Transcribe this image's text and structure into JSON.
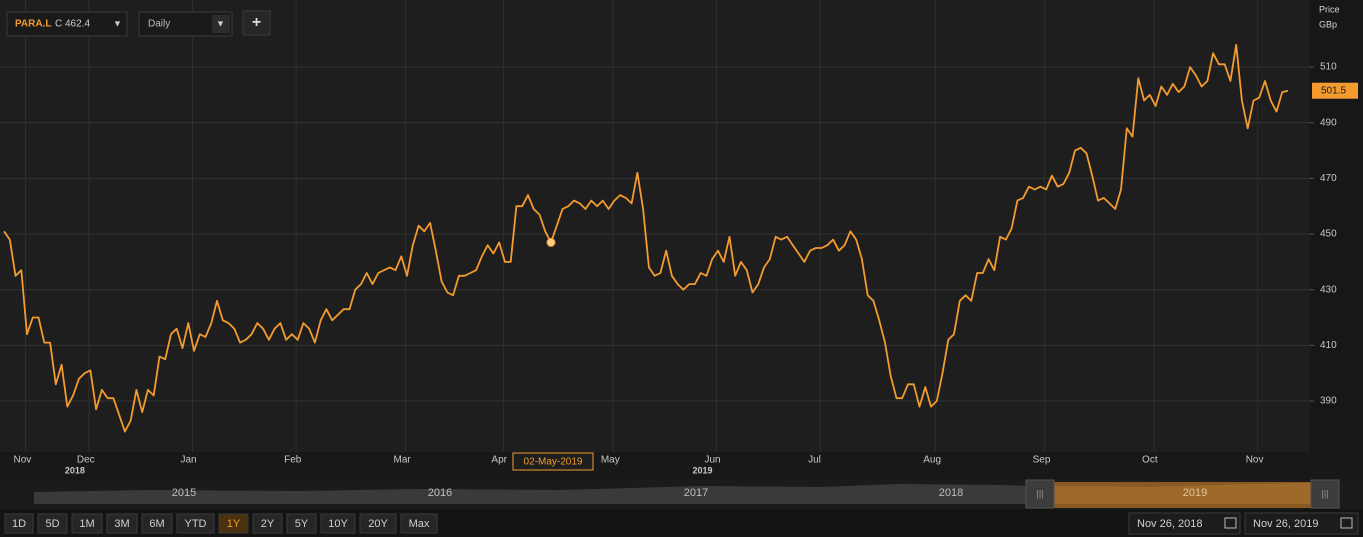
{
  "toolbar": {
    "symbol": "PARA.L",
    "quote": "C 462.4",
    "interval": "Daily",
    "add": "+"
  },
  "chart_data": {
    "type": "line",
    "axis_title": "Price",
    "axis_unit": "GBp",
    "categories": [
      null,
      null,
      "Nov",
      null,
      null,
      null,
      null,
      null,
      null,
      null,
      null,
      null,
      null,
      "Dec",
      null,
      null,
      null,
      null,
      null,
      null,
      null,
      null,
      null,
      null,
      null,
      null,
      null,
      null,
      null,
      null,
      null,
      "Jan",
      null,
      null,
      null,
      null,
      null,
      null,
      null,
      null,
      null,
      null,
      null,
      null,
      null,
      null,
      null,
      null,
      null,
      "Feb",
      null,
      null,
      null,
      null,
      null,
      null,
      null,
      null,
      null,
      null,
      null,
      null,
      null,
      null,
      null,
      null,
      null,
      null,
      "Mar",
      null,
      null,
      null,
      null,
      null,
      null,
      null,
      null,
      null,
      null,
      null,
      null,
      null,
      null,
      null,
      null,
      "Apr",
      null,
      null,
      null,
      null,
      null,
      null,
      null,
      null,
      null,
      null,
      null,
      null,
      null,
      null,
      null,
      null,
      null,
      null,
      "May",
      null,
      null,
      null,
      null,
      null,
      null,
      null,
      null,
      null,
      null,
      null,
      null,
      null,
      null,
      null,
      null,
      null,
      "Jun",
      null,
      null,
      null,
      null,
      null,
      null,
      null,
      null,
      null,
      null,
      null,
      null,
      null,
      null,
      null,
      null,
      null,
      "Jul",
      null,
      null,
      null,
      null,
      null,
      null,
      null,
      null,
      null,
      null,
      null,
      null,
      null,
      null,
      null,
      null,
      null,
      null,
      null,
      "Aug",
      null,
      null,
      null,
      null,
      null,
      null,
      null,
      null,
      null,
      null,
      null,
      null,
      null,
      null,
      null,
      null,
      null,
      null,
      "Sep",
      null,
      null,
      null,
      null,
      null,
      null,
      null,
      null,
      null,
      null,
      null,
      null,
      null,
      null,
      null,
      null,
      null,
      null,
      "Oct",
      null,
      null,
      null,
      null,
      null,
      null,
      null,
      null,
      null,
      null,
      null,
      null,
      null,
      null,
      null,
      null,
      null,
      "Nov",
      null,
      null,
      null,
      null,
      null,
      null,
      null
    ],
    "year_labels": [
      "2018",
      "2019"
    ],
    "series": [
      {
        "name": "PARA.L",
        "color": "#f39b2f",
        "values": [
          451,
          448,
          435,
          437,
          414,
          420,
          420,
          411,
          411,
          396,
          403,
          388,
          392,
          398,
          400,
          401,
          387,
          394,
          391,
          391,
          385,
          379,
          383,
          394,
          386,
          394,
          392,
          406,
          405,
          414,
          416,
          409,
          418,
          408,
          414,
          413,
          418,
          426,
          419,
          418,
          416,
          411,
          412,
          414,
          418,
          416,
          412,
          416,
          418,
          412,
          414,
          412,
          418,
          416,
          411,
          419,
          423,
          419,
          421,
          423,
          423,
          430,
          432,
          436,
          432,
          436,
          437,
          438,
          437,
          442,
          435,
          446,
          453,
          451,
          454,
          444,
          433,
          429,
          428,
          435,
          435,
          436,
          437,
          442,
          446,
          443,
          447,
          440,
          440,
          460,
          460,
          464,
          459,
          457,
          451,
          447,
          453,
          459,
          460,
          462,
          461,
          459,
          462,
          460,
          462,
          459,
          462,
          464,
          463,
          461,
          472,
          459,
          438,
          435,
          436,
          444,
          435,
          432,
          430,
          432,
          432,
          436,
          435,
          441,
          444,
          440,
          449,
          435,
          440,
          437,
          429,
          432,
          438,
          441,
          449,
          448,
          449,
          446,
          443,
          440,
          444,
          445,
          445,
          446,
          448,
          444,
          446,
          451,
          448,
          441,
          428,
          426,
          419,
          411,
          399,
          391,
          391,
          396,
          396,
          388,
          395,
          388,
          390,
          400,
          412,
          414,
          426,
          428,
          426,
          436,
          436,
          441,
          437,
          449,
          448,
          452,
          462,
          463,
          467,
          466,
          467,
          466,
          471,
          467,
          468,
          472,
          480,
          481,
          479,
          471,
          462,
          463,
          461,
          459,
          466,
          488,
          485,
          506,
          498,
          500,
          496,
          503,
          500,
          504,
          501,
          503,
          510,
          507,
          503,
          505,
          515,
          511,
          511,
          505,
          518,
          498,
          488,
          498,
          499,
          505,
          498,
          494,
          501,
          501.5
        ]
      }
    ],
    "ylim": [
      372.4,
      534.1
    ],
    "yticks": [
      390,
      410,
      430,
      450,
      470,
      490,
      510
    ],
    "grid": true,
    "crosshair_label": "02-May-2019"
  },
  "navigator": {
    "years": [
      "2015",
      "2016",
      "2017",
      "2018",
      "2019"
    ]
  },
  "range_buttons": [
    "1D",
    "5D",
    "1M",
    "3M",
    "6M",
    "YTD",
    "1Y",
    "2Y",
    "5Y",
    "10Y",
    "20Y",
    "Max"
  ],
  "selected_range": "1Y",
  "date_from": "Nov 26, 2018",
  "date_to": "Nov 26, 2019"
}
